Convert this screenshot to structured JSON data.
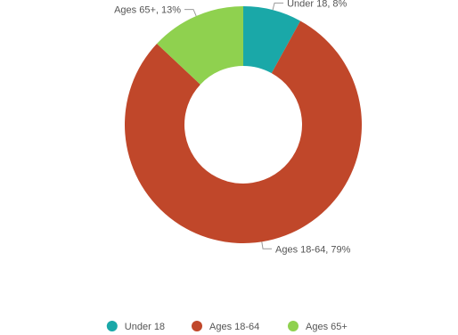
{
  "chart_data": {
    "type": "pie",
    "title": "",
    "categories": [
      "Under 18",
      "Ages 18-64",
      "Ages 65+"
    ],
    "values": [
      8,
      79,
      13
    ],
    "data_labels": [
      "Under 18, 8%",
      "Ages 18-64, 79%",
      "Ages 65+, 13%"
    ],
    "colors": [
      "#1aa8a8",
      "#c0472a",
      "#8fd14f"
    ],
    "donut": true,
    "start_angle_deg": 90,
    "direction": "clockwise",
    "legend": {
      "position": "bottom",
      "entries": [
        "Under 18",
        "Ages 18-64",
        "Ages 65+"
      ]
    }
  }
}
